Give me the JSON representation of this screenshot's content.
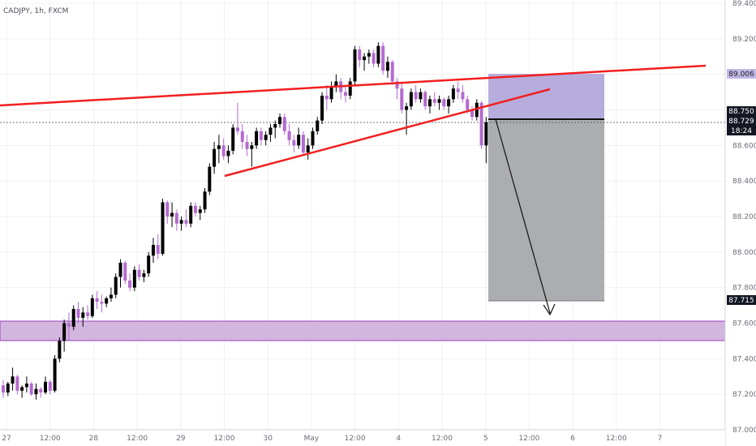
{
  "header": {
    "symbol_label": "CADJPY, 1h, FXCM"
  },
  "colors": {
    "bull": "#000000",
    "bear": "#b46ad0",
    "trendline": "#f21f1f",
    "support_zone_fill": "#d2b6de",
    "support_zone_border": "#9b3fbf",
    "stop_zone_fill": "#a99fd6",
    "target_zone_fill": "#a8a9ac",
    "axis_text": "#6a6d78"
  },
  "price_axis": {
    "ticks": [
      "89.400",
      "89.200",
      "89.000",
      "88.800",
      "88.600",
      "88.400",
      "88.200",
      "88.000",
      "87.800",
      "87.600",
      "87.400",
      "87.200",
      "87.000"
    ],
    "badges": [
      {
        "text": "89.006",
        "value": 89.006,
        "style": "light"
      },
      {
        "text": "88.750",
        "value": 88.75,
        "style": "dark"
      },
      {
        "text": "88.729",
        "value": 88.729,
        "style": "dark"
      },
      {
        "text": "18:24",
        "style": "dark"
      },
      {
        "text": "87.715",
        "value": 87.715,
        "style": "dark"
      }
    ]
  },
  "time_axis": {
    "ticks": [
      "27",
      "12:00",
      "28",
      "12:00",
      "29",
      "12:00",
      "30",
      "May",
      "12:00",
      "4",
      "12:00",
      "5",
      "12:00",
      "6",
      "12:00",
      "7"
    ]
  },
  "chart_data": {
    "type": "candlestick",
    "symbol": "CADJPY",
    "timeframe": "1h",
    "source": "FXCM",
    "ylim": [
      87.0,
      89.4
    ],
    "current_price": 88.729,
    "countdown": "18:24",
    "support_zone": {
      "from": 87.48,
      "to": 87.59
    },
    "short_position": {
      "entry": 88.75,
      "stop": 89.006,
      "target": 87.715
    },
    "trendlines": [
      {
        "name": "upper",
        "from": [
          "26 ~03:00",
          88.935
        ],
        "to": [
          "6 ~05:00",
          89.04
        ]
      },
      {
        "name": "lower",
        "from": [
          "29 ~12:00",
          88.41
        ],
        "to": [
          "4 ~16:00",
          88.96
        ]
      }
    ],
    "candles": [
      [
        87.25,
        87.28,
        87.18,
        87.21
      ],
      [
        87.21,
        87.27,
        87.19,
        87.26
      ],
      [
        87.26,
        87.35,
        87.22,
        87.3
      ],
      [
        87.3,
        87.31,
        87.2,
        87.22
      ],
      [
        87.22,
        87.25,
        87.18,
        87.24
      ],
      [
        87.24,
        87.3,
        87.21,
        87.26
      ],
      [
        87.26,
        87.27,
        87.19,
        87.2
      ],
      [
        87.2,
        87.26,
        87.17,
        87.23
      ],
      [
        87.23,
        87.24,
        87.18,
        87.21
      ],
      [
        87.21,
        87.3,
        87.2,
        87.27
      ],
      [
        87.27,
        87.28,
        87.2,
        87.22
      ],
      [
        87.22,
        87.42,
        87.21,
        87.4
      ],
      [
        87.4,
        87.52,
        87.38,
        87.5
      ],
      [
        87.5,
        87.62,
        87.44,
        87.6
      ],
      [
        87.6,
        87.66,
        87.5,
        87.58
      ],
      [
        87.58,
        87.7,
        87.56,
        87.68
      ],
      [
        87.68,
        87.72,
        87.6,
        87.63
      ],
      [
        87.63,
        87.69,
        87.58,
        87.66
      ],
      [
        87.66,
        87.7,
        87.62,
        87.64
      ],
      [
        87.64,
        87.76,
        87.63,
        87.74
      ],
      [
        87.74,
        87.78,
        87.68,
        87.72
      ],
      [
        87.72,
        87.76,
        87.66,
        87.71
      ],
      [
        87.71,
        87.75,
        87.69,
        87.74
      ],
      [
        87.74,
        87.8,
        87.72,
        87.76
      ],
      [
        87.76,
        87.88,
        87.74,
        87.86
      ],
      [
        87.86,
        87.96,
        87.8,
        87.94
      ],
      [
        87.94,
        87.95,
        87.82,
        87.84
      ],
      [
        87.84,
        87.88,
        87.78,
        87.8
      ],
      [
        87.8,
        87.92,
        87.78,
        87.9
      ],
      [
        87.9,
        87.93,
        87.84,
        87.86
      ],
      [
        87.86,
        87.9,
        87.83,
        87.88
      ],
      [
        87.88,
        88.0,
        87.86,
        87.98
      ],
      [
        87.98,
        88.08,
        87.94,
        88.04
      ],
      [
        88.04,
        88.1,
        87.96,
        87.99
      ],
      [
        87.99,
        88.3,
        87.98,
        88.28
      ],
      [
        88.28,
        88.29,
        88.16,
        88.2
      ],
      [
        88.2,
        88.28,
        88.14,
        88.22
      ],
      [
        88.22,
        88.24,
        88.12,
        88.16
      ],
      [
        88.16,
        88.2,
        88.12,
        88.18
      ],
      [
        88.18,
        88.24,
        88.14,
        88.16
      ],
      [
        88.16,
        88.28,
        88.14,
        88.26
      ],
      [
        88.26,
        88.28,
        88.2,
        88.22
      ],
      [
        88.22,
        88.26,
        88.18,
        88.24
      ],
      [
        88.24,
        88.36,
        88.22,
        88.34
      ],
      [
        88.34,
        88.5,
        88.32,
        88.48
      ],
      [
        88.48,
        88.62,
        88.44,
        88.58
      ],
      [
        88.58,
        88.66,
        88.5,
        88.6
      ],
      [
        88.6,
        88.64,
        88.52,
        88.54
      ],
      [
        88.54,
        88.6,
        88.5,
        88.57
      ],
      [
        88.57,
        88.72,
        88.55,
        88.7
      ],
      [
        88.7,
        88.84,
        88.66,
        88.68
      ],
      [
        88.68,
        88.72,
        88.58,
        88.62
      ],
      [
        88.62,
        88.66,
        88.54,
        88.58
      ],
      [
        88.58,
        88.62,
        88.48,
        88.6
      ],
      [
        88.6,
        88.7,
        88.58,
        88.68
      ],
      [
        88.68,
        88.7,
        88.6,
        88.63
      ],
      [
        88.63,
        88.68,
        88.6,
        88.66
      ],
      [
        88.66,
        88.72,
        88.62,
        88.7
      ],
      [
        88.7,
        88.74,
        88.64,
        88.72
      ],
      [
        88.72,
        88.78,
        88.7,
        88.76
      ],
      [
        88.76,
        88.78,
        88.66,
        88.68
      ],
      [
        88.68,
        88.72,
        88.6,
        88.63
      ],
      [
        88.63,
        88.66,
        88.56,
        88.6
      ],
      [
        88.6,
        88.7,
        88.58,
        88.66
      ],
      [
        88.66,
        88.68,
        88.54,
        88.56
      ],
      [
        88.56,
        88.64,
        88.52,
        88.6
      ],
      [
        88.6,
        88.7,
        88.58,
        88.68
      ],
      [
        88.68,
        88.76,
        88.66,
        88.74
      ],
      [
        88.74,
        88.9,
        88.72,
        88.88
      ],
      [
        88.88,
        88.94,
        88.8,
        88.86
      ],
      [
        88.86,
        88.96,
        88.84,
        88.93
      ],
      [
        88.93,
        89.0,
        88.9,
        88.96
      ],
      [
        88.96,
        88.98,
        88.86,
        88.9
      ],
      [
        88.9,
        88.94,
        88.84,
        88.88
      ],
      [
        88.88,
        88.98,
        88.86,
        88.96
      ],
      [
        88.96,
        89.16,
        88.94,
        89.14
      ],
      [
        89.14,
        89.16,
        89.04,
        89.08
      ],
      [
        89.08,
        89.12,
        89.02,
        89.1
      ],
      [
        89.1,
        89.14,
        89.06,
        89.12
      ],
      [
        89.12,
        89.14,
        89.04,
        89.06
      ],
      [
        89.06,
        89.18,
        89.04,
        89.16
      ],
      [
        89.16,
        89.18,
        89.0,
        89.02
      ],
      [
        89.02,
        89.1,
        88.98,
        89.07
      ],
      [
        89.07,
        89.08,
        88.94,
        88.96
      ],
      [
        88.96,
        88.98,
        88.86,
        88.92
      ],
      [
        88.92,
        88.96,
        88.78,
        88.8
      ],
      [
        88.8,
        88.84,
        88.66,
        88.82
      ],
      [
        88.82,
        88.92,
        88.8,
        88.9
      ],
      [
        88.9,
        88.94,
        88.84,
        88.86
      ],
      [
        88.86,
        88.92,
        88.84,
        88.9
      ],
      [
        88.9,
        88.91,
        88.8,
        88.82
      ],
      [
        88.82,
        88.88,
        88.78,
        88.86
      ],
      [
        88.86,
        88.9,
        88.82,
        88.84
      ],
      [
        88.84,
        88.88,
        88.8,
        88.86
      ],
      [
        88.86,
        88.87,
        88.8,
        88.82
      ],
      [
        88.82,
        88.88,
        88.78,
        88.86
      ],
      [
        88.86,
        88.94,
        88.84,
        88.92
      ],
      [
        88.92,
        88.96,
        88.86,
        88.9
      ],
      [
        88.9,
        88.94,
        88.84,
        88.86
      ],
      [
        88.86,
        88.88,
        88.78,
        88.8
      ],
      [
        88.8,
        88.82,
        88.74,
        88.76
      ],
      [
        88.76,
        88.86,
        88.74,
        88.84
      ],
      [
        88.84,
        88.85,
        88.58,
        88.6
      ],
      [
        88.6,
        88.76,
        88.5,
        88.73
      ]
    ]
  }
}
